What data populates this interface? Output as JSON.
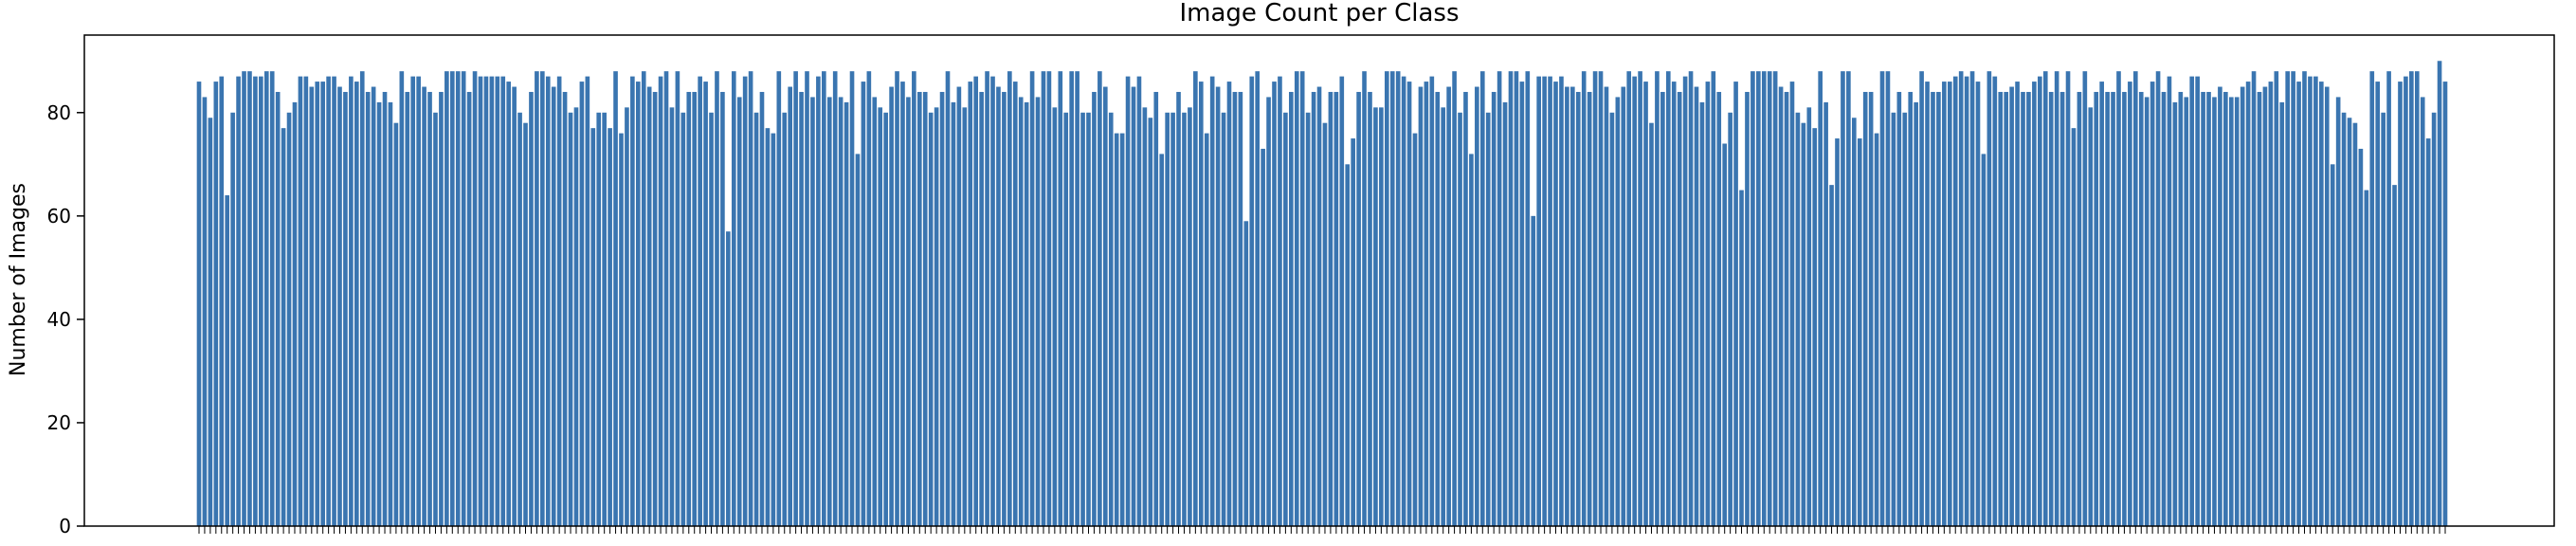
{
  "chart_data": {
    "type": "bar",
    "title": "Image Count per Class",
    "xlabel": "",
    "ylabel": "Number of Images",
    "ylim": [
      0,
      95
    ],
    "yticks": [
      0,
      20,
      40,
      60,
      80
    ],
    "grid": false,
    "legend": "none",
    "bar_color": "#3a75b0",
    "values": [
      86,
      83,
      79,
      86,
      87,
      64,
      80,
      87,
      88,
      88,
      87,
      87,
      88,
      88,
      84,
      77,
      80,
      82,
      87,
      87,
      85,
      86,
      86,
      87,
      87,
      85,
      84,
      87,
      86,
      88,
      84,
      85,
      82,
      84,
      82,
      78,
      88,
      84,
      87,
      87,
      85,
      84,
      80,
      84,
      88,
      88,
      88,
      88,
      84,
      88,
      87,
      87,
      87,
      87,
      87,
      86,
      85,
      80,
      78,
      84,
      88,
      88,
      87,
      85,
      87,
      84,
      80,
      81,
      86,
      87,
      77,
      80,
      80,
      77,
      88,
      76,
      81,
      87,
      86,
      88,
      85,
      84,
      87,
      88,
      81,
      88,
      80,
      84,
      84,
      87,
      86,
      80,
      88,
      84,
      57,
      88,
      83,
      87,
      88,
      80,
      84,
      77,
      76,
      88,
      80,
      85,
      88,
      84,
      88,
      83,
      87,
      88,
      83,
      88,
      83,
      82,
      88,
      72,
      86,
      88,
      83,
      81,
      80,
      85,
      88,
      86,
      83,
      88,
      84,
      84,
      80,
      81,
      84,
      88,
      82,
      85,
      81,
      86,
      87,
      84,
      88,
      87,
      85,
      84,
      88,
      86,
      83,
      82,
      88,
      83,
      88,
      88,
      81,
      88,
      80,
      88,
      88,
      80,
      80,
      84,
      88,
      85,
      80,
      76,
      76,
      87,
      85,
      87,
      81,
      79,
      84,
      72,
      80,
      80,
      84,
      80,
      81,
      88,
      86,
      76,
      87,
      85,
      80,
      86,
      84,
      84,
      59,
      87,
      88,
      73,
      83,
      86,
      87,
      80,
      84,
      88,
      88,
      80,
      84,
      85,
      78,
      84,
      84,
      87,
      70,
      75,
      84,
      88,
      84,
      81,
      81,
      88,
      88,
      88,
      87,
      86,
      76,
      85,
      86,
      87,
      84,
      81,
      85,
      88,
      80,
      84,
      72,
      85,
      88,
      80,
      84,
      88,
      82,
      88,
      88,
      86,
      88,
      60,
      87,
      87,
      87,
      86,
      87,
      85,
      85,
      84,
      88,
      84,
      88,
      88,
      85,
      80,
      83,
      85,
      88,
      87,
      88,
      86,
      78,
      88,
      84,
      88,
      86,
      84,
      87,
      88,
      85,
      82,
      86,
      88,
      84,
      74,
      80,
      86,
      65,
      84,
      88,
      88,
      88,
      88,
      88,
      85,
      84,
      86,
      80,
      78,
      81,
      77,
      88,
      82,
      66,
      75,
      88,
      88,
      79,
      75,
      84,
      84,
      76,
      88,
      88,
      80,
      84,
      80,
      84,
      82,
      88,
      86,
      84,
      84,
      86,
      86,
      87,
      88,
      87,
      88,
      86,
      72,
      88,
      87,
      84,
      84,
      85,
      86,
      84,
      84,
      86,
      87,
      88,
      84,
      88,
      84,
      88,
      77,
      84,
      88,
      81,
      84,
      86,
      84,
      84,
      88,
      84,
      86,
      88,
      84,
      83,
      86,
      88,
      84,
      87,
      82,
      84,
      83,
      87,
      87,
      84,
      84,
      83,
      85,
      84,
      83,
      83,
      85,
      86,
      88,
      84,
      85,
      86,
      88,
      82,
      88,
      88,
      86,
      88,
      87,
      87,
      86,
      85,
      70,
      83,
      80,
      79,
      78,
      73,
      65,
      88,
      86,
      80,
      88,
      66,
      86,
      87,
      88,
      88,
      83,
      75,
      80,
      90,
      86
    ]
  }
}
